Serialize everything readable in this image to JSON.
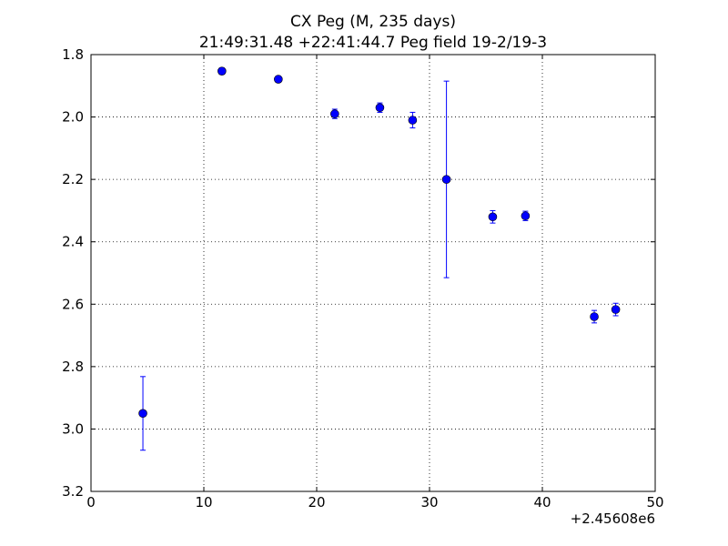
{
  "chart_data": {
    "type": "errorbar",
    "title": "CX Peg (M, 235 days)",
    "subtitle": "21:49:31.48 +22:41:44.7 Peg field 19-2/19-3",
    "x_offset_label": "+2.45608e6",
    "x": [
      4.6,
      11.6,
      16.6,
      21.6,
      25.6,
      28.5,
      31.5,
      35.6,
      38.5,
      44.6,
      46.5
    ],
    "series": [
      {
        "color": "#0000ff",
        "values": [
          2.95,
          1.853,
          1.879,
          1.99,
          1.97,
          2.01,
          2.2,
          2.32,
          2.317,
          2.64,
          2.617
        ],
        "errors": [
          0.118,
          0.01,
          0.01,
          0.015,
          0.015,
          0.025,
          0.315,
          0.02,
          0.015,
          0.02,
          0.02
        ]
      }
    ],
    "xlim": [
      0,
      50
    ],
    "xticks": [
      0,
      10,
      20,
      30,
      40,
      50
    ],
    "ylim": [
      1.8,
      3.2
    ],
    "invert_y": true,
    "yticks": [
      1.8,
      {
        "value": 2,
        "label": "2.0"
      },
      2.2,
      2.4,
      2.6,
      2.8,
      {
        "value": 3,
        "label": "3.0"
      },
      3.2
    ],
    "grid": true
  }
}
